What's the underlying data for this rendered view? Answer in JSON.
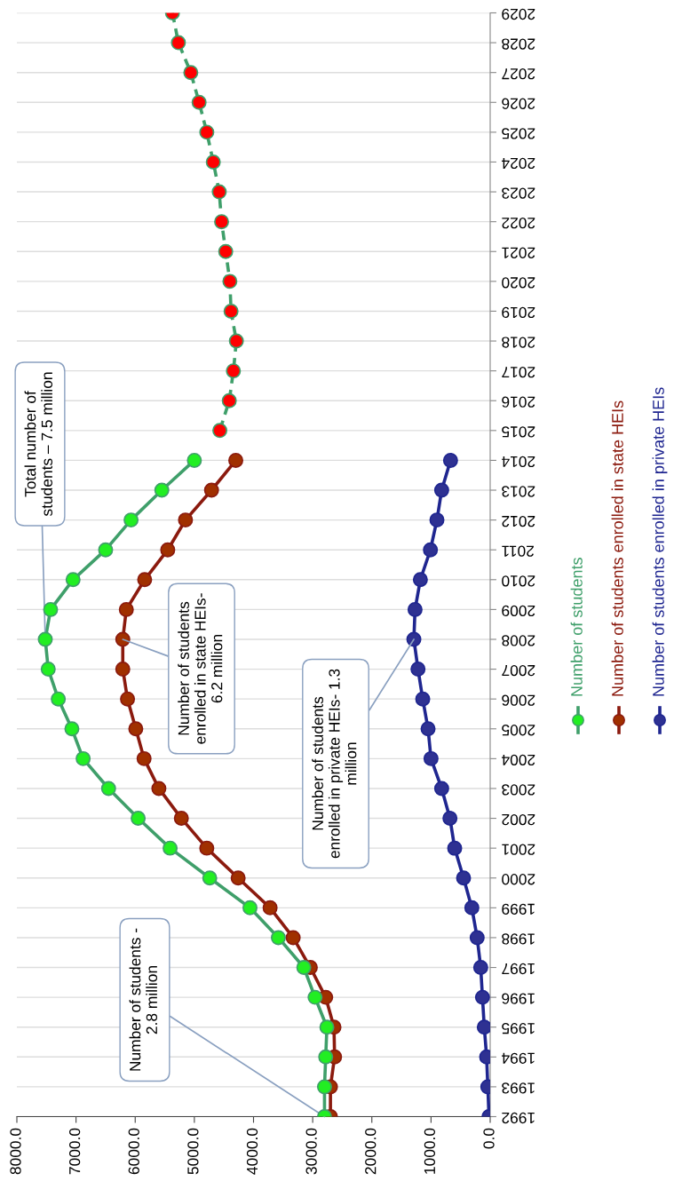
{
  "chart_data": {
    "type": "line",
    "orientation": "horizontal",
    "categories": [
      "2029",
      "2028",
      "2027",
      "2026",
      "2025",
      "2024",
      "2023",
      "2022",
      "2021",
      "2020",
      "2019",
      "2018",
      "2017",
      "2016",
      "2015",
      "2014",
      "2013",
      "2012",
      "2011",
      "2010",
      "2009",
      "2008",
      "2007",
      "2006",
      "2005",
      "2004",
      "2003",
      "2002",
      "2001",
      "2000",
      "1999",
      "1998",
      "1997",
      "1996",
      "1995",
      "1994",
      "1993",
      "1992"
    ],
    "xlim": [
      8000,
      0
    ],
    "xticks": [
      {
        "value": 8000,
        "label": "8000.0"
      },
      {
        "value": 7000,
        "label": "7000.0"
      },
      {
        "value": 6000,
        "label": "6000.0"
      },
      {
        "value": 5000,
        "label": "5000.0"
      },
      {
        "value": 4000,
        "label": "4000.0"
      },
      {
        "value": 3000,
        "label": "3000.0"
      },
      {
        "value": 2000,
        "label": "2000.0"
      },
      {
        "value": 1000,
        "label": "1000.0"
      },
      {
        "value": 0,
        "label": "0.0"
      }
    ],
    "grid": "y",
    "legend": "right",
    "marker": "circle",
    "series": [
      {
        "name": "Number of students",
        "color": "#3f9f6a",
        "line_style": "solid",
        "colors": [
          null,
          null,
          null,
          null,
          null,
          null,
          null,
          null,
          null,
          null,
          null,
          null,
          null,
          null,
          null,
          "#22ee22",
          "#22ee22",
          "#22ee22",
          "#22ee22",
          "#22ee22",
          "#22ee22",
          "#22ee22",
          "#22ee22",
          "#22ee22",
          "#22ee22",
          "#22ee22",
          "#22ee22",
          "#22ee22",
          "#22ee22",
          "#22ee22",
          "#22ee22",
          "#22ee22",
          "#22ee22",
          "#22ee22",
          "#22ee22",
          "#22ee22",
          "#22ee22",
          "#22ee22"
        ],
        "values": [
          null,
          null,
          null,
          null,
          null,
          null,
          null,
          null,
          null,
          null,
          null,
          null,
          null,
          null,
          null,
          5000,
          5550,
          6070,
          6500,
          7050,
          7430,
          7520,
          7470,
          7300,
          7070,
          6880,
          6450,
          5950,
          5410,
          4740,
          4060,
          3580,
          3150,
          2960,
          2760,
          2780,
          2800,
          2800
        ]
      },
      {
        "name": "Number of students enrolled in state HEIs",
        "color": "#8b1a0e",
        "line_style": "solid",
        "colors": [
          null,
          null,
          null,
          null,
          null,
          null,
          null,
          null,
          null,
          null,
          null,
          null,
          null,
          null,
          null,
          "#a03000",
          "#a03000",
          "#a03000",
          "#a03000",
          "#a03000",
          "#a03000",
          "#a03000",
          "#a03000",
          "#a03000",
          "#a03000",
          "#a03000",
          "#a03000",
          "#a03000",
          "#a03000",
          "#a03000",
          "#a03000",
          "#a03000",
          "#a03000",
          "#a03000",
          "#a03000",
          "#a03000",
          "#a03000",
          "#a03000"
        ],
        "values": [
          null,
          null,
          null,
          null,
          null,
          null,
          null,
          null,
          null,
          null,
          null,
          null,
          null,
          null,
          null,
          4300,
          4710,
          5150,
          5450,
          5840,
          6150,
          6210,
          6210,
          6130,
          5990,
          5850,
          5600,
          5220,
          4790,
          4260,
          3720,
          3330,
          3040,
          2780,
          2640,
          2630,
          2700,
          2700
        ]
      },
      {
        "name": "Number of students enrolled in private HEIs",
        "color": "#1f2690",
        "line_style": "solid",
        "colors": [
          null,
          null,
          null,
          null,
          null,
          null,
          null,
          null,
          null,
          null,
          null,
          null,
          null,
          null,
          null,
          "#2e3192",
          "#2e3192",
          "#2e3192",
          "#2e3192",
          "#2e3192",
          "#2e3192",
          "#2e3192",
          "#2e3192",
          "#2e3192",
          "#2e3192",
          "#2e3192",
          "#2e3192",
          "#2e3192",
          "#2e3192",
          "#2e3192",
          "#2e3192",
          "#2e3192",
          "#2e3192",
          "#2e3192",
          "#2e3192",
          "#2e3192",
          "#2e3192",
          "#2e3192"
        ],
        "values": [
          null,
          null,
          null,
          null,
          null,
          null,
          null,
          null,
          null,
          null,
          null,
          null,
          null,
          null,
          null,
          670,
          820,
          900,
          1010,
          1180,
          1270,
          1290,
          1220,
          1140,
          1050,
          1000,
          820,
          680,
          600,
          450,
          310,
          220,
          160,
          130,
          100,
          60,
          40,
          20
        ]
      },
      {
        "color": "#3f9f6a",
        "line_style": "dashed",
        "colors": [
          "#ff0000",
          "#ff0000",
          "#ff0000",
          "#ff0000",
          "#ff0000",
          "#ff0000",
          "#ff0000",
          "#ff0000",
          "#ff0000",
          "#ff0000",
          "#ff0000",
          "#ff0000",
          "#ff0000",
          "#ff0000",
          "#ff0000",
          null,
          null,
          null,
          null,
          null,
          null,
          null,
          null,
          null,
          null,
          null,
          null,
          null,
          null,
          null,
          null,
          null,
          null,
          null,
          null,
          null,
          null,
          null
        ],
        "values": [
          5370,
          5270,
          5060,
          4920,
          4790,
          4680,
          4580,
          4540,
          4470,
          4400,
          4380,
          4290,
          4340,
          4410,
          4570,
          null,
          null,
          null,
          null,
          null,
          null,
          null,
          null,
          null,
          null,
          null,
          null,
          null,
          null,
          null,
          null,
          null,
          null,
          null,
          null,
          null,
          null,
          null
        ]
      }
    ],
    "annotations": [
      {
        "text": "Total number of\nstudents – 7.5 million",
        "x": 7520,
        "y": "2008"
      },
      {
        "text": "Number of students\nenrolled in state HEIs-\n6.2 million",
        "x": 6210,
        "y": "2008"
      },
      {
        "text": "Number of students\nenrolled in private HEIs- 1.3\nmillion",
        "x": 1290,
        "y": "2008"
      },
      {
        "text": "Number of students -\n2.8 million",
        "x": 2800,
        "y": "1992"
      }
    ]
  }
}
